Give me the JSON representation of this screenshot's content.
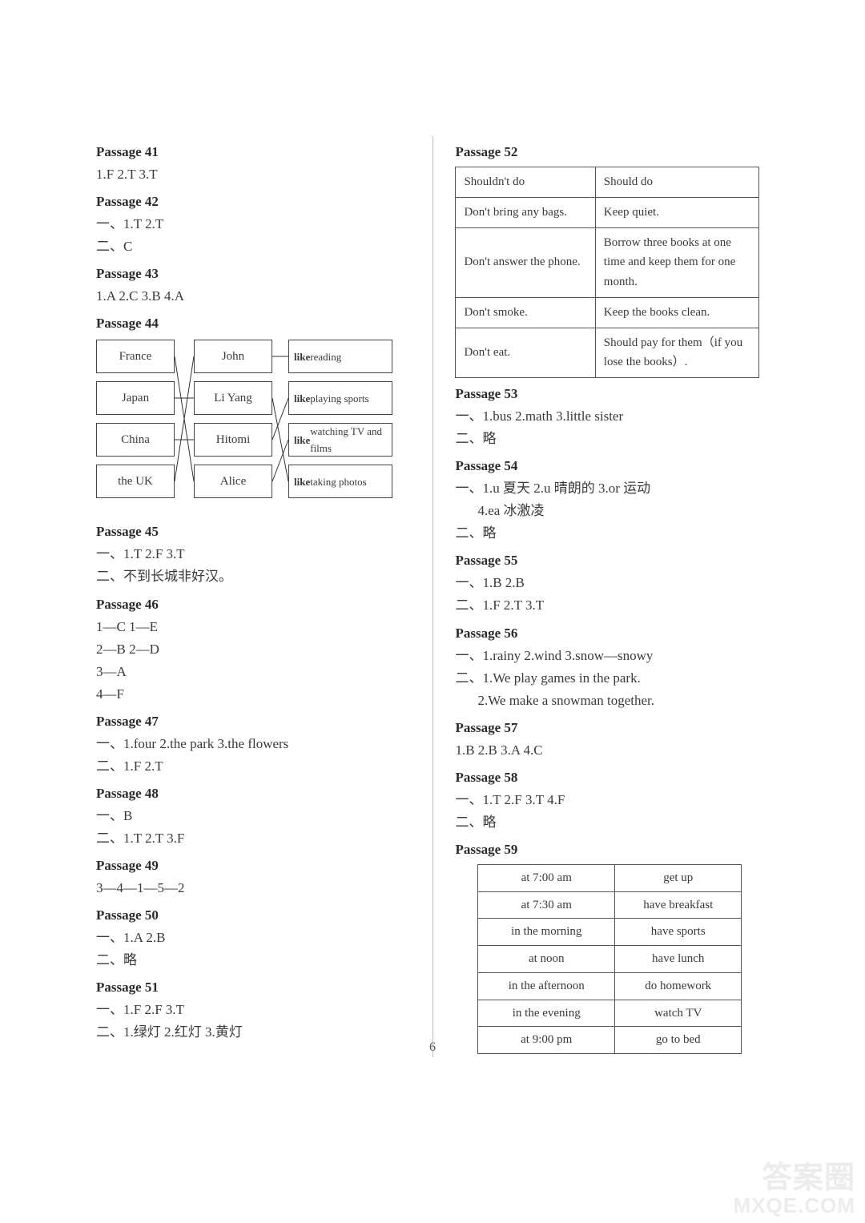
{
  "page_number": "6",
  "watermark": {
    "line1": "答案圈",
    "line2": "MXQE.COM"
  },
  "left": {
    "p41": {
      "title": "Passage 41",
      "ans": "1.F  2.T  3.T"
    },
    "p42": {
      "title": "Passage 42",
      "l1": "一、1.T  2.T",
      "l2": "二、C"
    },
    "p43": {
      "title": "Passage 43",
      "ans": "1.A  2.C  3.B  4.A"
    },
    "p44": {
      "title": "Passage 44",
      "col1": [
        "France",
        "Japan",
        "China",
        "the UK"
      ],
      "col2": [
        "John",
        "Li Yang",
        "Hitomi",
        "Alice"
      ],
      "col3prefix": "like ",
      "col3": [
        "reading",
        "playing sports",
        "watching TV and films",
        "taking photos"
      ],
      "edges_a": [
        [
          0,
          3
        ],
        [
          1,
          1
        ],
        [
          2,
          2
        ],
        [
          3,
          0
        ]
      ],
      "edges_b": [
        [
          0,
          0
        ],
        [
          1,
          3
        ],
        [
          2,
          1
        ],
        [
          3,
          2
        ]
      ]
    },
    "p45": {
      "title": "Passage 45",
      "l1": "一、1.T  2.F  3.T",
      "l2": "二、不到长城非好汉。"
    },
    "p46": {
      "title": "Passage 46",
      "l1": "1—C  1—E",
      "l2": "2—B  2—D",
      "l3": "3—A",
      "l4": "4—F"
    },
    "p47": {
      "title": "Passage 47",
      "l1": "一、1.four  2.the park  3.the flowers",
      "l2": "二、1.F  2.T"
    },
    "p48": {
      "title": "Passage 48",
      "l1": "一、B",
      "l2": "二、1.T  2.T  3.F"
    },
    "p49": {
      "title": "Passage 49",
      "l1": "3—4—1—5—2"
    },
    "p50": {
      "title": "Passage 50",
      "l1": "一、1.A  2.B",
      "l2": "二、略"
    },
    "p51": {
      "title": "Passage 51",
      "l1": "一、1.F  2.F  3.T",
      "l2": "二、1.绿灯  2.红灯  3.黄灯"
    }
  },
  "right": {
    "p52": {
      "title": "Passage 52",
      "header": [
        "Shouldn't do",
        "Should do"
      ],
      "rows": [
        [
          "Don't bring any bags.",
          "Keep quiet."
        ],
        [
          "Don't answer the phone.",
          "Borrow three books at one time and keep them for one month."
        ],
        [
          "Don't smoke.",
          "Keep the books clean."
        ],
        [
          "Don't eat.",
          "Should pay for them（if you lose the books）."
        ]
      ]
    },
    "p53": {
      "title": "Passage 53",
      "l1": "一、1.bus  2.math  3.little sister",
      "l2": "二、略"
    },
    "p54": {
      "title": "Passage 54",
      "l1": "一、1.u 夏天  2.u 晴朗的  3.or 运动",
      "l2": "4.ea 冰激凌",
      "l3": "二、略"
    },
    "p55": {
      "title": "Passage 55",
      "l1": "一、1.B  2.B",
      "l2": "二、1.F  2.T  3.T"
    },
    "p56": {
      "title": "Passage 56",
      "l1": "一、1.rainy  2.wind  3.snow—snowy",
      "l2": "二、1.We play games in the park.",
      "l3": "2.We make a snowman together."
    },
    "p57": {
      "title": "Passage 57",
      "l1": "1.B  2.B  3.A  4.C"
    },
    "p58": {
      "title": "Passage 58",
      "l1": "一、1.T  2.F  3.T  4.F",
      "l2": "二、略"
    },
    "p59": {
      "title": "Passage 59",
      "rows": [
        [
          "at 7:00 am",
          "get up"
        ],
        [
          "at 7:30 am",
          "have breakfast"
        ],
        [
          "in the morning",
          "have sports"
        ],
        [
          "at noon",
          "have lunch"
        ],
        [
          "in the afternoon",
          "do homework"
        ],
        [
          "in the evening",
          "watch TV"
        ],
        [
          "at 9:00 pm",
          "go to bed"
        ]
      ]
    }
  }
}
